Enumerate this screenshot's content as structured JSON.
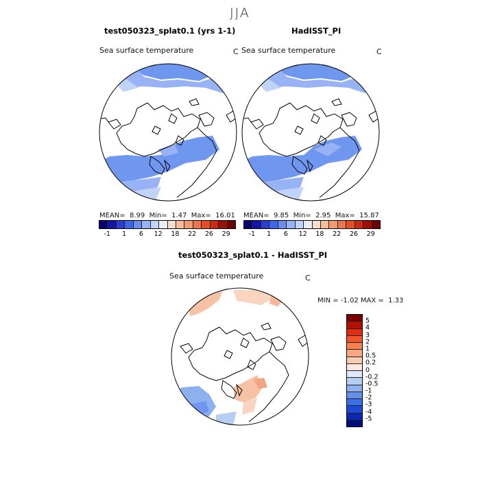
{
  "season": "JJA",
  "panels": {
    "model": {
      "title": "test050323_splat0.1 (yrs 1-1)",
      "var_label": "Sea surface temperature",
      "unit": "C",
      "mean_label": "MEAN=",
      "mean": "8.99",
      "min_label": "Min=",
      "min": "1.47",
      "max_label": "Max=",
      "max": "16.01"
    },
    "obs": {
      "title": "HadISST_PI",
      "var_label": "Sea surface temperature",
      "unit": "C",
      "mean_label": "MEAN=",
      "mean": "9.85",
      "min_label": "Min=",
      "min": "2.95",
      "max_label": "Max=",
      "max": "15.87"
    },
    "diff": {
      "title": "test050323_splat0.1 - HadISST_PI",
      "var_label": "Sea surface temperature",
      "unit": "C",
      "min_label": "MIN =",
      "min": "-1.02",
      "max_label": "MAX =",
      "max": "1.33"
    }
  },
  "abs_colorbar": {
    "colors": [
      "#08006e",
      "#1614a6",
      "#2a3fd1",
      "#3f66e8",
      "#6a8df0",
      "#97b3f5",
      "#c2d3f8",
      "#e9edf6",
      "#f9ddcd",
      "#f6bd9d",
      "#f39b70",
      "#ee744a",
      "#e54c28",
      "#cc2a10",
      "#9e1005",
      "#6e0000"
    ],
    "tick_labels": [
      "-1",
      "1",
      "6",
      "12",
      "18",
      "22",
      "26",
      "29"
    ]
  },
  "diff_colorbar": {
    "colors": [
      "#7a0000",
      "#b50e05",
      "#e12e12",
      "#f1572d",
      "#f58050",
      "#f7a880",
      "#f9cbb0",
      "#fde9df",
      "#dde8f8",
      "#b6cdf4",
      "#8db0ef",
      "#6590eb",
      "#3e6ee6",
      "#1f4ad6",
      "#0d28b0",
      "#020f7a"
    ],
    "tick_labels": [
      "5",
      "4",
      "3",
      "2",
      "1",
      "0.5",
      "0.2",
      "0",
      "-0.2",
      "-0.5",
      "-1",
      "-2",
      "-3",
      "-4",
      "-5"
    ]
  },
  "colors": {
    "cold_sst": "#6f97ef",
    "mid_sst": "#97b3f5",
    "pale_sst": "#c2d3f8",
    "warm_anomaly": "#f6c2a6",
    "cool_anomaly": "#8db0ef",
    "coast": "#000000"
  }
}
